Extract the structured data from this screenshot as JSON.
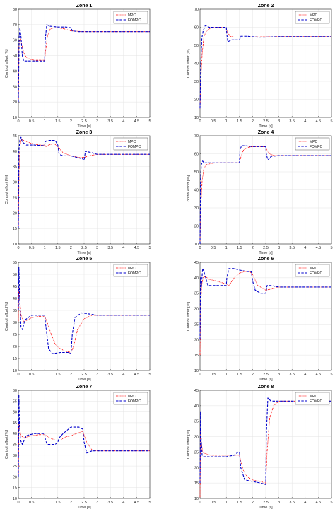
{
  "series_names": [
    "MPC",
    "FOMPC"
  ],
  "colors": {
    "MPC": "#ff0000",
    "FOMPC": "#0000cc"
  },
  "chart_data": [
    {
      "type": "line",
      "title": "Zone 1",
      "xlabel": "Time [s]",
      "ylabel": "Control effort [%]",
      "xlim": [
        0,
        5
      ],
      "ylim": [
        10,
        80
      ],
      "grid": true,
      "legend": "top-right",
      "xticks": [
        "0",
        "0.5",
        "1",
        "1.5",
        "2",
        "2.5",
        "3",
        "3.5",
        "4",
        "4.5",
        "5"
      ],
      "yticks": [
        "10",
        "20",
        "30",
        "40",
        "50",
        "60",
        "70",
        "80"
      ],
      "series": [
        {
          "name": "MPC",
          "x": [
            0,
            0.02,
            0.05,
            0.08,
            0.12,
            0.2,
            0.3,
            0.45,
            0.6,
            0.8,
            1.0,
            1.03,
            1.1,
            1.2,
            1.35,
            1.5,
            1.7,
            2.0,
            2.5,
            3,
            4,
            5
          ],
          "y": [
            20,
            55,
            60,
            61,
            58,
            52,
            49,
            47.5,
            47,
            47,
            47,
            52,
            62,
            67,
            68,
            68,
            67.5,
            66,
            65.5,
            65.5,
            65.5,
            65.5
          ]
        },
        {
          "name": "FOMPC",
          "x": [
            0,
            0.03,
            0.06,
            0.1,
            0.15,
            0.2,
            0.3,
            0.5,
            0.8,
            1.0,
            1.02,
            1.08,
            1.2,
            1.5,
            1.8,
            2.0,
            2.05,
            2.3,
            3,
            4,
            5
          ],
          "y": [
            20,
            62,
            68,
            62,
            50,
            46.5,
            46.5,
            46.5,
            46.5,
            46.5,
            60,
            70,
            69,
            68.5,
            68.5,
            68,
            66,
            65.5,
            65.5,
            65.5,
            65.5
          ]
        }
      ]
    },
    {
      "type": "line",
      "title": "Zone 2",
      "xlabel": "Time [s]",
      "ylabel": "Control effort [%]",
      "xlim": [
        0,
        5
      ],
      "ylim": [
        10,
        70
      ],
      "grid": true,
      "legend": "top-right",
      "xticks": [
        "0",
        "0.5",
        "1",
        "1.5",
        "2",
        "2.5",
        "3",
        "3.5",
        "4",
        "4.5",
        "5"
      ],
      "yticks": [
        "10",
        "20",
        "30",
        "40",
        "50",
        "60",
        "70"
      ],
      "series": [
        {
          "name": "MPC",
          "x": [
            0,
            0.03,
            0.08,
            0.15,
            0.25,
            0.4,
            0.6,
            0.8,
            1.0,
            1.05,
            1.15,
            1.3,
            1.5,
            2,
            2.5,
            3,
            4,
            5
          ],
          "y": [
            15,
            30,
            45,
            55,
            58,
            59.5,
            60,
            60,
            59.5,
            57,
            55,
            54.5,
            54.5,
            54.6,
            54.7,
            54.8,
            54.8,
            54.8
          ]
        },
        {
          "name": "FOMPC",
          "x": [
            0,
            0.03,
            0.07,
            0.12,
            0.2,
            0.35,
            0.6,
            1.0,
            1.02,
            1.06,
            1.2,
            1.5,
            1.55,
            1.8,
            2.2,
            2.5,
            3,
            4,
            5
          ],
          "y": [
            15,
            40,
            54,
            58,
            61,
            60,
            60,
            60,
            56,
            52,
            53,
            53,
            55,
            55,
            54.5,
            54.5,
            54.8,
            54.8,
            54.8
          ]
        }
      ]
    },
    {
      "type": "line",
      "title": "Zone 3",
      "xlabel": "Time [s]",
      "ylabel": "Control effort [%]",
      "xlim": [
        0,
        5
      ],
      "ylim": [
        10,
        45
      ],
      "grid": true,
      "legend": "top-right",
      "xticks": [
        "0",
        "0.5",
        "1",
        "1.5",
        "2",
        "2.5",
        "3",
        "3.5",
        "4",
        "4.5",
        "5"
      ],
      "yticks": [
        "10",
        "15",
        "20",
        "25",
        "30",
        "35",
        "40",
        "45"
      ],
      "series": [
        {
          "name": "MPC",
          "x": [
            0,
            0.03,
            0.07,
            0.12,
            0.2,
            0.35,
            0.5,
            0.8,
            1.0,
            1.05,
            1.15,
            1.35,
            1.5,
            1.7,
            2.0,
            2.3,
            2.5,
            2.7,
            3,
            4,
            5
          ],
          "y": [
            15,
            35,
            42,
            44,
            43.5,
            43,
            42.5,
            42,
            42,
            41.5,
            42,
            42.5,
            41.5,
            39.5,
            38.5,
            38,
            38,
            38.5,
            39,
            39,
            39
          ]
        },
        {
          "name": "FOMPC",
          "x": [
            0,
            0.02,
            0.06,
            0.1,
            0.15,
            0.3,
            0.6,
            1.0,
            1.02,
            1.1,
            1.4,
            1.5,
            1.55,
            1.7,
            2.0,
            2.45,
            2.5,
            2.55,
            2.8,
            3,
            4,
            5
          ],
          "y": [
            15,
            40,
            44,
            44.5,
            43,
            42,
            42,
            41.8,
            43,
            43.5,
            43.5,
            42,
            39,
            38.5,
            38.5,
            37.5,
            37,
            40,
            39.5,
            39,
            39,
            39
          ]
        }
      ]
    },
    {
      "type": "line",
      "title": "Zone 4",
      "xlabel": "Time [s]",
      "ylabel": "Control effort [%]",
      "xlim": [
        0,
        5
      ],
      "ylim": [
        10,
        70
      ],
      "grid": true,
      "legend": "top-right",
      "xticks": [
        "0",
        "0.5",
        "1",
        "1.5",
        "2",
        "2.5",
        "3",
        "3.5",
        "4",
        "4.5",
        "5"
      ],
      "yticks": [
        "10",
        "20",
        "30",
        "40",
        "50",
        "60",
        "70"
      ],
      "series": [
        {
          "name": "MPC",
          "x": [
            0,
            0.03,
            0.08,
            0.15,
            0.25,
            0.4,
            0.6,
            1.0,
            1.5,
            1.55,
            1.65,
            1.8,
            2.0,
            2.5,
            2.55,
            2.65,
            2.8,
            3,
            4,
            5
          ],
          "y": [
            10,
            30,
            45,
            52,
            54,
            54.5,
            55,
            55,
            55,
            58,
            62,
            63.5,
            64,
            64,
            62,
            60,
            59,
            59,
            59,
            59
          ]
        },
        {
          "name": "FOMPC",
          "x": [
            0,
            0.02,
            0.05,
            0.1,
            0.15,
            0.3,
            0.6,
            1.0,
            1.5,
            1.52,
            1.58,
            1.7,
            2.0,
            2.5,
            2.52,
            2.58,
            2.7,
            3,
            4,
            5
          ],
          "y": [
            10,
            45,
            54,
            56,
            55,
            55,
            55,
            55,
            55,
            62,
            64.5,
            64.5,
            64,
            64,
            60,
            56.5,
            58.5,
            59,
            59,
            59
          ]
        }
      ]
    },
    {
      "type": "line",
      "title": "Zone 5",
      "xlabel": "Time [s]",
      "ylabel": "Control effort [%]",
      "xlim": [
        0,
        5
      ],
      "ylim": [
        10,
        55
      ],
      "grid": true,
      "legend": "top-right",
      "xticks": [
        "0",
        "0.5",
        "1",
        "1.5",
        "2",
        "2.5",
        "3",
        "3.5",
        "4",
        "4.5",
        "5"
      ],
      "yticks": [
        "10",
        "15",
        "20",
        "25",
        "30",
        "35",
        "40",
        "45",
        "50",
        "55"
      ],
      "series": [
        {
          "name": "MPC",
          "x": [
            0,
            0.02,
            0.05,
            0.1,
            0.2,
            0.35,
            0.5,
            0.8,
            1.0,
            1.1,
            1.25,
            1.4,
            1.6,
            1.8,
            2.0,
            2.1,
            2.25,
            2.5,
            2.8,
            3,
            4,
            5
          ],
          "y": [
            30,
            45,
            40,
            33,
            30.5,
            31,
            32,
            32.5,
            32.5,
            30,
            25,
            21,
            19,
            18,
            17.5,
            20,
            27,
            31.5,
            33,
            33,
            33,
            33
          ]
        },
        {
          "name": "FOMPC",
          "x": [
            0,
            0.02,
            0.05,
            0.1,
            0.15,
            0.25,
            0.5,
            0.9,
            1.0,
            1.05,
            1.15,
            1.3,
            1.6,
            1.9,
            2.0,
            2.05,
            2.15,
            2.4,
            2.7,
            3,
            4,
            5
          ],
          "y": [
            35,
            53,
            40,
            28,
            27,
            31,
            33,
            33,
            33,
            28,
            19,
            17,
            17.5,
            17.5,
            17,
            25,
            32,
            34,
            33.5,
            33,
            33,
            33
          ]
        }
      ]
    },
    {
      "type": "line",
      "title": "Zone 6",
      "xlabel": "Time [s]",
      "ylabel": "Control effort [%]",
      "xlim": [
        0,
        5
      ],
      "ylim": [
        10,
        45
      ],
      "grid": true,
      "legend": "top-right",
      "xticks": [
        "0",
        "0.5",
        "1",
        "1.5",
        "2",
        "2.5",
        "3",
        "3.5",
        "4",
        "4.5",
        "5"
      ],
      "yticks": [
        "10",
        "15",
        "20",
        "25",
        "30",
        "35",
        "40",
        "45"
      ],
      "series": [
        {
          "name": "MPC",
          "x": [
            0,
            0.03,
            0.07,
            0.12,
            0.2,
            0.35,
            0.6,
            0.8,
            1.0,
            1.1,
            1.3,
            1.5,
            1.7,
            1.9,
            2.0,
            2.2,
            2.5,
            2.8,
            3,
            4,
            5
          ],
          "y": [
            15,
            32,
            38,
            40,
            40.5,
            39.5,
            39,
            38.5,
            38,
            37.5,
            40,
            41.5,
            42,
            42,
            41,
            37.5,
            36,
            36.5,
            37,
            37,
            37
          ]
        },
        {
          "name": "FOMPC",
          "x": [
            0,
            0.02,
            0.05,
            0.1,
            0.15,
            0.3,
            0.6,
            1.0,
            1.02,
            1.1,
            1.3,
            1.5,
            1.8,
            1.95,
            2.0,
            2.1,
            2.3,
            2.5,
            2.55,
            2.7,
            3,
            4,
            5
          ],
          "y": [
            20,
            40,
            37,
            43,
            42,
            37.5,
            37.5,
            37.5,
            40,
            43,
            43,
            42.5,
            42,
            42,
            39,
            36,
            35,
            35,
            37.5,
            37.5,
            37,
            37,
            37
          ]
        }
      ]
    },
    {
      "type": "line",
      "title": "Zone 7",
      "xlabel": "Time [s]",
      "ylabel": "Control effort [%]",
      "xlim": [
        0,
        5
      ],
      "ylim": [
        10,
        60
      ],
      "grid": true,
      "legend": "top-right",
      "xticks": [
        "0",
        "0.5",
        "1",
        "1.5",
        "2",
        "2.5",
        "3",
        "3.5",
        "4",
        "4.5",
        "5"
      ],
      "yticks": [
        "10",
        "15",
        "20",
        "25",
        "30",
        "35",
        "40",
        "45",
        "50",
        "55",
        "60"
      ],
      "series": [
        {
          "name": "MPC",
          "x": [
            0,
            0.02,
            0.05,
            0.1,
            0.2,
            0.35,
            0.5,
            0.8,
            1.0,
            1.2,
            1.4,
            1.6,
            1.8,
            2.0,
            2.2,
            2.45,
            2.6,
            2.8,
            3,
            4,
            5
          ],
          "y": [
            20,
            45,
            42,
            39,
            38,
            38.5,
            39,
            39.5,
            39.5,
            38,
            37,
            37,
            38.5,
            39,
            40,
            41,
            36,
            32.5,
            32,
            32,
            32
          ]
        },
        {
          "name": "FOMPC",
          "x": [
            0,
            0.02,
            0.04,
            0.08,
            0.15,
            0.3,
            0.6,
            1.0,
            1.03,
            1.1,
            1.4,
            1.5,
            1.55,
            1.7,
            2.0,
            2.3,
            2.45,
            2.5,
            2.6,
            2.8,
            3,
            4,
            5
          ],
          "y": [
            20,
            58,
            45,
            37,
            35,
            39,
            40,
            40,
            37,
            35,
            35,
            36,
            38,
            40,
            43,
            43,
            42,
            36,
            31,
            32,
            32,
            32,
            32
          ]
        }
      ]
    },
    {
      "type": "line",
      "title": "Zone 8",
      "xlabel": "Time [s]",
      "ylabel": "Control effort [%]",
      "xlim": [
        0,
        5
      ],
      "ylim": [
        10,
        45
      ],
      "grid": true,
      "legend": "top-right",
      "xticks": [
        "0",
        "0.5",
        "1",
        "1.5",
        "2",
        "2.5",
        "3",
        "3.5",
        "4",
        "4.5",
        "5"
      ],
      "yticks": [
        "10",
        "15",
        "20",
        "25",
        "30",
        "35",
        "40",
        "45"
      ],
      "series": [
        {
          "name": "MPC",
          "x": [
            0,
            0.02,
            0.05,
            0.1,
            0.2,
            0.4,
            0.7,
            1.0,
            1.3,
            1.5,
            1.55,
            1.65,
            1.8,
            2.0,
            2.3,
            2.5,
            2.55,
            2.65,
            2.8,
            3,
            4,
            5
          ],
          "y": [
            10,
            32,
            28,
            25,
            24.5,
            24,
            24,
            24,
            24,
            24,
            22,
            19,
            17,
            16,
            15.5,
            15,
            25,
            36,
            40,
            41.5,
            41.5,
            41.5
          ]
        },
        {
          "name": "FOMPC",
          "x": [
            0,
            0.02,
            0.04,
            0.08,
            0.15,
            0.3,
            0.6,
            1.0,
            1.3,
            1.45,
            1.5,
            1.55,
            1.7,
            2.0,
            2.3,
            2.5,
            2.52,
            2.58,
            2.7,
            3,
            4,
            5
          ],
          "y": [
            15,
            38,
            30,
            24,
            23.5,
            23.5,
            23.5,
            23.5,
            24,
            25,
            25,
            20,
            16,
            15.5,
            15,
            14.5,
            30,
            42.5,
            41.5,
            41.5,
            41.5,
            41.5
          ]
        }
      ]
    }
  ]
}
